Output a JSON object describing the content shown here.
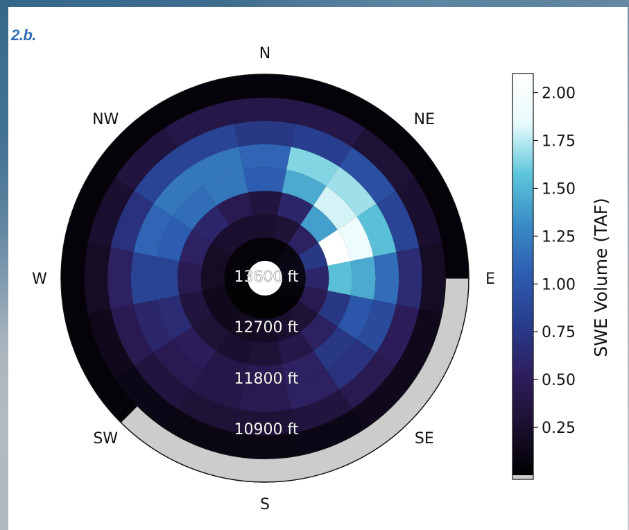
{
  "panel": {
    "label": "2.b."
  },
  "chart_data": {
    "type": "heatmap",
    "subtype": "polar aspect-elevation",
    "directions": [
      "N",
      "NE",
      "E",
      "SE",
      "S",
      "SW",
      "W",
      "NW"
    ],
    "ring_labels": [
      "13600 ft",
      "12700 ft",
      "11800 ft",
      "10900 ft"
    ],
    "colorbar": {
      "label": "SWE Volume (TAF)",
      "ticks": [
        "0.25",
        "0.50",
        "0.75",
        "1.00",
        "1.25",
        "1.50",
        "1.75",
        "2.00"
      ],
      "range": [
        0.0,
        2.1
      ],
      "colormap": [
        "#000000",
        "#1b1030",
        "#2e1e5e",
        "#283c8c",
        "#2d5cb0",
        "#3a8cc6",
        "#5cc6da",
        "#e8fbfb",
        "#ffffff"
      ],
      "no_data_color": "#cccccc"
    },
    "theta_bins": 16,
    "rings": [
      {
        "name": "r1",
        "values": [
          0.05,
          0.05,
          0.1,
          0.12,
          0.1,
          0.06,
          0.04,
          0.03,
          0.03,
          0.03,
          0.03,
          0.03,
          0.05,
          0.05,
          0.05,
          0.05
        ]
      },
      {
        "name": "r2",
        "values": [
          0.25,
          0.3,
          0.55,
          0.75,
          0.6,
          0.45,
          0.3,
          0.25,
          0.2,
          0.18,
          0.15,
          0.15,
          0.2,
          0.2,
          0.25,
          0.25
        ]
      },
      {
        "name": "r3",
        "values": [
          0.35,
          0.6,
          1.4,
          2.1,
          1.55,
          0.75,
          0.55,
          0.4,
          0.3,
          0.25,
          0.3,
          0.35,
          0.45,
          0.55,
          0.6,
          0.45
        ]
      },
      {
        "name": "r4",
        "values": [
          1.05,
          1.45,
          1.8,
          1.9,
          1.45,
          1.0,
          0.75,
          0.55,
          0.45,
          0.4,
          0.5,
          0.65,
          0.85,
          1.05,
          1.15,
          1.2
        ]
      },
      {
        "name": "r5",
        "values": [
          1.1,
          1.65,
          1.7,
          1.55,
          1.15,
          0.9,
          0.7,
          0.55,
          0.45,
          0.4,
          0.45,
          0.6,
          0.85,
          1.1,
          1.2,
          1.2
        ]
      },
      {
        "name": "r6",
        "values": [
          0.75,
          0.8,
          0.95,
          0.85,
          0.65,
          0.5,
          0.45,
          0.35,
          0.3,
          0.3,
          0.35,
          0.45,
          0.55,
          0.7,
          0.85,
          0.85
        ]
      },
      {
        "name": "r7",
        "values": [
          0.4,
          0.4,
          0.3,
          0.25,
          0.2,
          0.15,
          0.15,
          0.12,
          0.1,
          0.1,
          0.12,
          0.15,
          0.2,
          0.25,
          0.35,
          0.4
        ]
      },
      {
        "name": "r8",
        "values": [
          0.05,
          0.05,
          0.05,
          0.05,
          0.05,
          0.05,
          0.05,
          0.05,
          0.05,
          0.05,
          0.05,
          0.05,
          0.05,
          0.05,
          0.05,
          0.05
        ]
      }
    ],
    "no_data_arc": {
      "from_direction_deg": 90,
      "to_direction_deg": 225,
      "ring": "outer"
    }
  }
}
